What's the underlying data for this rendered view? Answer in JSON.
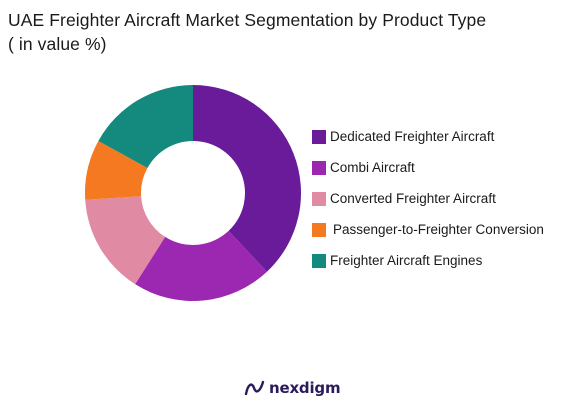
{
  "chart_data": {
    "type": "pie",
    "style": "donut",
    "title_lines": [
      "UAE Freighter Aircraft Market Segmentation by Product Type",
      "( in value %)"
    ],
    "legend_position": "right",
    "series": [
      {
        "name": "Dedicated Freighter Aircraft",
        "value": 38,
        "color": "#6a1b9a"
      },
      {
        "name": "Combi Aircraft",
        "value": 21,
        "color": "#9c27b0"
      },
      {
        "name": "Converted Freighter Aircraft",
        "value": 15,
        "color": "#e08aa3"
      },
      {
        "name": "Passenger-to-Freighter Conversion",
        "value": 9,
        "color": "#f47920"
      },
      {
        "name": "Freighter Aircraft Engines",
        "value": 17,
        "color": "#138a7d"
      }
    ]
  },
  "brand": {
    "name": "nexdigm",
    "color": "#2b1b5a"
  }
}
